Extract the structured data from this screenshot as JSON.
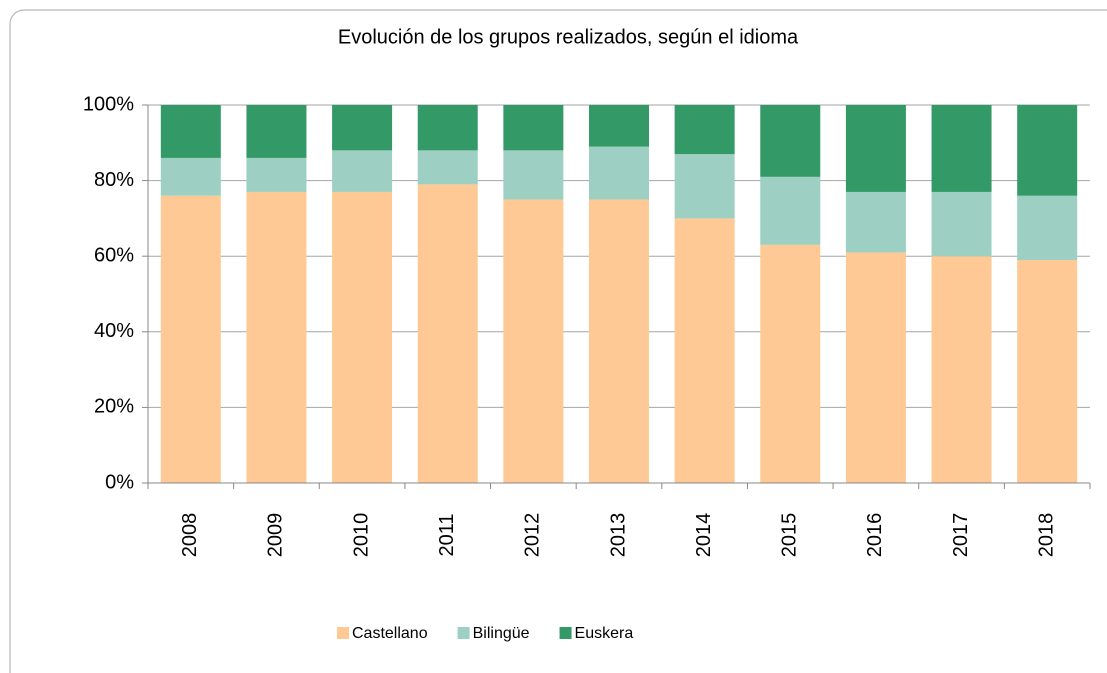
{
  "chart_data": {
    "type": "stacked_bar_100",
    "title": "Evolución de los grupos realizados, según el idioma",
    "categories": [
      "2008",
      "2009",
      "2010",
      "2011",
      "2012",
      "2013",
      "2014",
      "2015",
      "2016",
      "2017",
      "2018"
    ],
    "series": [
      {
        "name": "Castellano",
        "color": "#fec994",
        "values": [
          76,
          77,
          77,
          79,
          75,
          75,
          70,
          63,
          61,
          60,
          59
        ]
      },
      {
        "name": "Bilingüe",
        "color": "#9dcfc2",
        "values": [
          10,
          9,
          11,
          9,
          13,
          14,
          17,
          18,
          16,
          17,
          17
        ]
      },
      {
        "name": "Euskera",
        "color": "#339966",
        "values": [
          14,
          14,
          12,
          12,
          12,
          11,
          13,
          19,
          23,
          23,
          24
        ]
      }
    ],
    "ylim": [
      0,
      100
    ],
    "yticks": [
      {
        "value": 0,
        "label": "0%"
      },
      {
        "value": 20,
        "label": "20%"
      },
      {
        "value": 40,
        "label": "40%"
      },
      {
        "value": 60,
        "label": "60%"
      },
      {
        "value": 80,
        "label": "80%"
      },
      {
        "value": 100,
        "label": "100%"
      }
    ],
    "grid": true,
    "legend": "bottom"
  }
}
